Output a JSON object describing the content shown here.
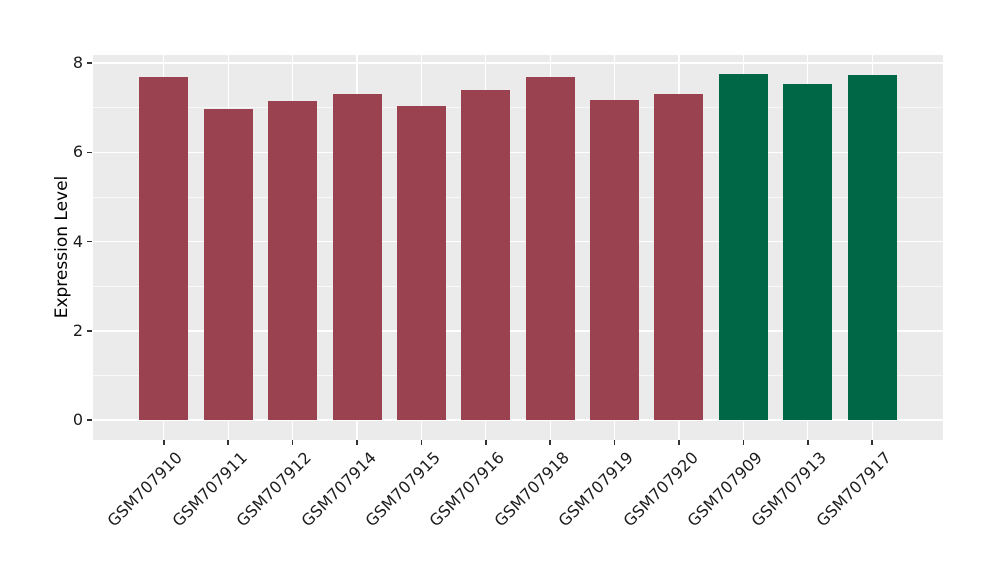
{
  "chart_data": {
    "type": "bar",
    "title": "",
    "xlabel": "",
    "ylabel": "Expression Level",
    "categories": [
      "GSM707910",
      "GSM707911",
      "GSM707912",
      "GSM707914",
      "GSM707915",
      "GSM707916",
      "GSM707918",
      "GSM707919",
      "GSM707920",
      "GSM707909",
      "GSM707913",
      "GSM707917"
    ],
    "values": [
      7.7,
      6.97,
      7.16,
      7.3,
      7.04,
      7.41,
      7.69,
      7.18,
      7.32,
      7.75,
      7.53,
      7.73
    ],
    "bar_colors": [
      "#9B4251",
      "#9B4251",
      "#9B4251",
      "#9B4251",
      "#9B4251",
      "#9B4251",
      "#9B4251",
      "#9B4251",
      "#9B4251",
      "#006746",
      "#006746",
      "#006746"
    ],
    "group_colors": {
      "maroon": "#9B4251",
      "green": "#006746"
    },
    "ylim": [
      0,
      8.4
    ],
    "y_ticks": [
      0,
      2,
      4,
      6,
      8
    ],
    "y_minor_ticks": [
      1,
      3,
      5,
      7
    ],
    "x_tick_rotation_deg": 45,
    "grid": true,
    "legend": "none",
    "panel_bg": "#EBEBEB",
    "grid_color": "#FFFFFF"
  }
}
